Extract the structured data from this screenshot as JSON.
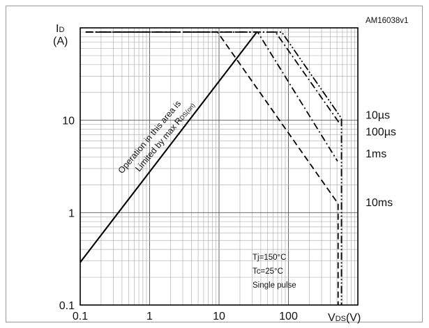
{
  "figure_id": "AM16038v1",
  "chart_data": {
    "type": "line",
    "x_scale": "log",
    "y_scale": "log",
    "xlim": [
      0.1,
      1000
    ],
    "ylim": [
      0.1,
      100
    ],
    "x_ticks": [
      "0.1",
      "1",
      "10",
      "100"
    ],
    "y_ticks": [
      "0.1",
      "1",
      "10"
    ],
    "xlabel": {
      "main": "V",
      "sub": "DS",
      "unit": "(V)"
    },
    "ylabel": {
      "main": "I",
      "sub": "D",
      "unit": "(A)"
    },
    "grid": true,
    "series": [
      {
        "name": "Limited by max RDS(on)",
        "style": "solid",
        "points": [
          [
            0.1,
            0.29
          ],
          [
            35,
            90
          ]
        ]
      },
      {
        "name": "10µs",
        "style": "dash-dot-dot",
        "points": [
          [
            0.12,
            90
          ],
          [
            80,
            90
          ],
          [
            580,
            10.5
          ],
          [
            580,
            0.1
          ]
        ]
      },
      {
        "name": "100µs",
        "style": "dash-dot",
        "points": [
          [
            0.12,
            90
          ],
          [
            65,
            90
          ],
          [
            560,
            9.0
          ]
        ]
      },
      {
        "name": "1ms",
        "style": "dash-dot",
        "points": [
          [
            0.12,
            90
          ],
          [
            36,
            90
          ],
          [
            510,
            3.6
          ]
        ]
      },
      {
        "name": "10ms",
        "style": "dashed",
        "points": [
          [
            0.12,
            90
          ],
          [
            9.5,
            90
          ],
          [
            520,
            1.25
          ],
          [
            520,
            0.1
          ]
        ]
      }
    ],
    "right_labels": [
      {
        "text": "10µs",
        "y": 11.5
      },
      {
        "text": "100µs",
        "y": 7.6
      },
      {
        "text": "1ms",
        "y": 4.4
      },
      {
        "text": "10ms",
        "y": 1.3
      }
    ],
    "region_annotation": [
      "Operation in this area is",
      "Limited by max R",
      "DS(on)"
    ],
    "conditions": [
      "Tj=150°C",
      "Tc=25°C",
      "Single pulse"
    ]
  }
}
